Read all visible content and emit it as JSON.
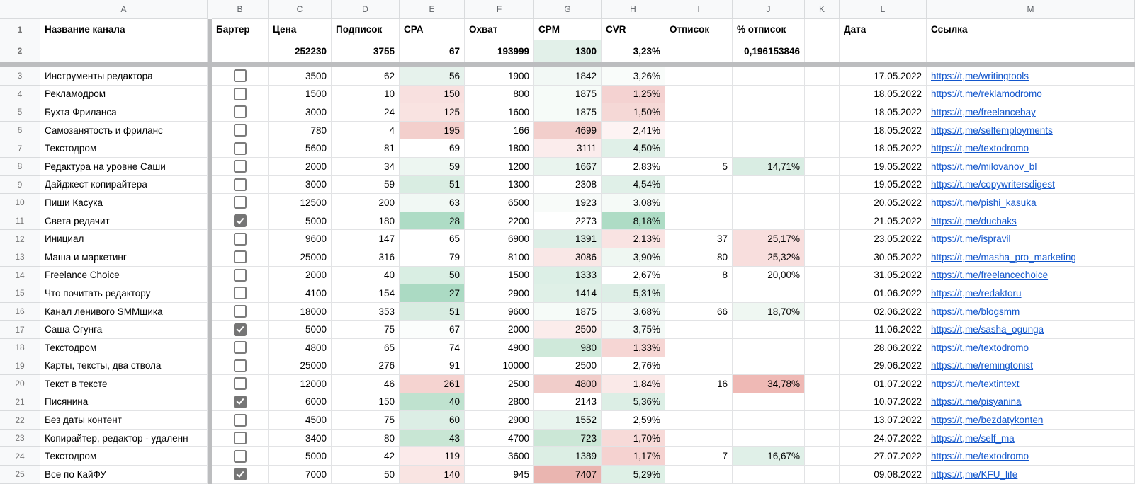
{
  "sheet": {
    "column_letters": [
      "A",
      "B",
      "C",
      "D",
      "E",
      "F",
      "G",
      "H",
      "I",
      "J",
      "K",
      "L",
      "M"
    ],
    "headers": {
      "name": "Название канала",
      "barter": "Бартер",
      "price": "Цена",
      "subs": "Подписок",
      "cpa": "CPA",
      "reach": "Охват",
      "cpm": "CPM",
      "cvr": "CVR",
      "unsub": "Отписок",
      "unsub_pct": "% отписок",
      "k": "",
      "date": "Дата",
      "link": "Ссылка"
    },
    "totals": {
      "row_number": "2",
      "price": "252230",
      "subs": "3755",
      "cpa": "67",
      "reach": "193999",
      "cpm": "1300",
      "cpm_bg": "#e2f0e9",
      "cvr": "3,23%",
      "unsub_pct": "0,196153846"
    },
    "rows": [
      {
        "row_number": "3",
        "name": "Инструменты редактора",
        "barter": false,
        "price": "3500",
        "subs": "62",
        "cpa": "56",
        "cpa_bg": "#e6f2ec",
        "reach": "1900",
        "cpm": "1842",
        "cpm_bg": "#f2f8f5",
        "cvr": "3,26%",
        "cvr_bg": "#f9fcfa",
        "unsub": "",
        "unsub_pct": "",
        "unsub_pct_bg": "",
        "date": "17.05.2022",
        "link": "https://t,me/writingtools"
      },
      {
        "row_number": "4",
        "name": "Рекламодром",
        "barter": false,
        "price": "1500",
        "subs": "10",
        "cpa": "150",
        "cpa_bg": "#f8e0df",
        "reach": "800",
        "cpm": "1875",
        "cpm_bg": "#f6fbf8",
        "cvr": "1,25%",
        "cvr_bg": "#f4d2d1",
        "unsub": "",
        "unsub_pct": "",
        "unsub_pct_bg": "",
        "date": "18.05.2022",
        "link": "https://t,me/reklamodromo"
      },
      {
        "row_number": "5",
        "name": "Бухта Фриланса",
        "barter": false,
        "price": "3000",
        "subs": "24",
        "cpa": "125",
        "cpa_bg": "#f9e3e1",
        "reach": "1600",
        "cpm": "1875",
        "cpm_bg": "#f6fbf8",
        "cvr": "1,50%",
        "cvr_bg": "#f5d8d6",
        "unsub": "",
        "unsub_pct": "",
        "unsub_pct_bg": "",
        "date": "18.05.2022",
        "link": "https://t,me/freelancebay"
      },
      {
        "row_number": "6",
        "name": "Самозанятость и фриланс",
        "barter": false,
        "price": "780",
        "subs": "4",
        "cpa": "195",
        "cpa_bg": "#f3cfcc",
        "reach": "166",
        "cpm": "4699",
        "cpm_bg": "#f2cecb",
        "cvr": "2,41%",
        "cvr_bg": "#fdf3f3",
        "unsub": "",
        "unsub_pct": "",
        "unsub_pct_bg": "",
        "date": "18.05.2022",
        "link": "https://t,me/selfemployments"
      },
      {
        "row_number": "7",
        "name": "Текстодром",
        "barter": false,
        "price": "5600",
        "subs": "81",
        "cpa": "69",
        "cpa_bg": "",
        "reach": "1800",
        "cpm": "3111",
        "cpm_bg": "#fbecec",
        "cvr": "4,50%",
        "cvr_bg": "#e0f0e8",
        "unsub": "",
        "unsub_pct": "",
        "unsub_pct_bg": "",
        "date": "18.05.2022",
        "link": "https://t,me/textodromo"
      },
      {
        "row_number": "8",
        "name": "Редактура на уровне Саши",
        "barter": false,
        "price": "2000",
        "subs": "34",
        "cpa": "59",
        "cpa_bg": "#edf6f1",
        "reach": "1200",
        "cpm": "1667",
        "cpm_bg": "#e9f4ee",
        "cvr": "2,83%",
        "cvr_bg": "",
        "unsub": "5",
        "unsub_pct": "14,71%",
        "unsub_pct_bg": "#d9ede3",
        "date": "19.05.2022",
        "link": "https://t,me/milovanov_bl"
      },
      {
        "row_number": "9",
        "name": "Дайджест копирайтера",
        "barter": false,
        "price": "3000",
        "subs": "59",
        "cpa": "51",
        "cpa_bg": "#d9ede2",
        "reach": "1300",
        "cpm": "2308",
        "cpm_bg": "",
        "cvr": "4,54%",
        "cvr_bg": "#e0f0e8",
        "unsub": "",
        "unsub_pct": "",
        "unsub_pct_bg": "",
        "date": "19.05.2022",
        "link": "https://t,me/copywritersdigest"
      },
      {
        "row_number": "10",
        "name": "Пиши Касука",
        "barter": false,
        "price": "12500",
        "subs": "200",
        "cpa": "63",
        "cpa_bg": "#f1f8f4",
        "reach": "6500",
        "cpm": "1923",
        "cpm_bg": "#f8fbf9",
        "cvr": "3,08%",
        "cvr_bg": "#f5faf7",
        "unsub": "",
        "unsub_pct": "",
        "unsub_pct_bg": "",
        "date": "20.05.2022",
        "link": "https://t,me/pishi_kasuka"
      },
      {
        "row_number": "11",
        "name": "Света редачит",
        "barter": true,
        "price": "5000",
        "subs": "180",
        "cpa": "28",
        "cpa_bg": "#aedcc5",
        "reach": "2200",
        "cpm": "2273",
        "cpm_bg": "",
        "cvr": "8,18%",
        "cvr_bg": "#aedcc5",
        "unsub": "",
        "unsub_pct": "",
        "unsub_pct_bg": "",
        "date": "21.05.2022",
        "link": "https://t,me/duchaks"
      },
      {
        "row_number": "12",
        "name": "Инициал",
        "barter": false,
        "price": "9600",
        "subs": "147",
        "cpa": "65",
        "cpa_bg": "",
        "reach": "6900",
        "cpm": "1391",
        "cpm_bg": "#ddeee6",
        "cvr": "2,13%",
        "cvr_bg": "#f9e3e2",
        "unsub": "37",
        "unsub_pct": "25,17%",
        "unsub_pct_bg": "#f8dedd",
        "date": "23.05.2022",
        "link": "https://t,me/ispravil"
      },
      {
        "row_number": "13",
        "name": "Маша и маркетинг",
        "barter": false,
        "price": "25000",
        "subs": "316",
        "cpa": "79",
        "cpa_bg": "",
        "reach": "8100",
        "cpm": "3086",
        "cpm_bg": "#f9e7e6",
        "cvr": "3,90%",
        "cvr_bg": "#eff7f2",
        "unsub": "80",
        "unsub_pct": "25,32%",
        "unsub_pct_bg": "#f8dedd",
        "date": "30.05.2022",
        "link": "https://t,me/masha_pro_marketing"
      },
      {
        "row_number": "14",
        "name": "Freelance Choice",
        "barter": false,
        "price": "2000",
        "subs": "40",
        "cpa": "50",
        "cpa_bg": "#d9eee3",
        "reach": "1500",
        "cpm": "1333",
        "cpm_bg": "#dcefe6",
        "cvr": "2,67%",
        "cvr_bg": "",
        "unsub": "8",
        "unsub_pct": "20,00%",
        "unsub_pct_bg": "",
        "date": "31.05.2022",
        "link": "https://t,me/freelancechoice"
      },
      {
        "row_number": "15",
        "name": "Что почитать редактору",
        "barter": false,
        "price": "4100",
        "subs": "154",
        "cpa": "27",
        "cpa_bg": "#abdac3",
        "reach": "2900",
        "cpm": "1414",
        "cpm_bg": "#dff0e7",
        "cvr": "5,31%",
        "cvr_bg": "#ddeee6",
        "unsub": "",
        "unsub_pct": "",
        "unsub_pct_bg": "",
        "date": "01.06.2022",
        "link": "https://t,me/redaktoru"
      },
      {
        "row_number": "16",
        "name": "Канал ленивого SMMщика",
        "barter": false,
        "price": "18000",
        "subs": "353",
        "cpa": "51",
        "cpa_bg": "#d8ece1",
        "reach": "9600",
        "cpm": "1875",
        "cpm_bg": "#f6fbf8",
        "cvr": "3,68%",
        "cvr_bg": "#f3f9f6",
        "unsub": "66",
        "unsub_pct": "18,70%",
        "unsub_pct_bg": "#eff7f2",
        "date": "02.06.2022",
        "link": "https://t,me/blogsmm"
      },
      {
        "row_number": "17",
        "name": "Саша Огунга",
        "barter": true,
        "price": "5000",
        "subs": "75",
        "cpa": "67",
        "cpa_bg": "#fbfdfc",
        "reach": "2000",
        "cpm": "2500",
        "cpm_bg": "#fbeceb",
        "cvr": "3,75%",
        "cvr_bg": "#f3f9f6",
        "unsub": "",
        "unsub_pct": "",
        "unsub_pct_bg": "",
        "date": "11.06.2022",
        "link": "https://t,me/sasha_ogunga"
      },
      {
        "row_number": "18",
        "name": "Текстодром",
        "barter": false,
        "price": "4800",
        "subs": "65",
        "cpa": "74",
        "cpa_bg": "",
        "reach": "4900",
        "cpm": "980",
        "cpm_bg": "#cfe9da",
        "cvr": "1,33%",
        "cvr_bg": "#f6d6d4",
        "unsub": "",
        "unsub_pct": "",
        "unsub_pct_bg": "",
        "date": "28.06.2022",
        "link": "https://t,me/textodromo"
      },
      {
        "row_number": "19",
        "name": "Карты, тексты, два ствола",
        "barter": false,
        "price": "25000",
        "subs": "276",
        "cpa": "91",
        "cpa_bg": "",
        "reach": "10000",
        "cpm": "2500",
        "cpm_bg": "",
        "cvr": "2,76%",
        "cvr_bg": "",
        "unsub": "",
        "unsub_pct": "",
        "unsub_pct_bg": "",
        "date": "29.06.2022",
        "link": "https://t,me/remingtonist"
      },
      {
        "row_number": "20",
        "name": "Текст в тексте",
        "barter": false,
        "price": "12000",
        "subs": "46",
        "cpa": "261",
        "cpa_bg": "#f5d3d0",
        "reach": "2500",
        "cpm": "4800",
        "cpm_bg": "#f1cdca",
        "cvr": "1,84%",
        "cvr_bg": "#fae9e8",
        "unsub": "16",
        "unsub_pct": "34,78%",
        "unsub_pct_bg": "#efb9b5",
        "date": "01.07.2022",
        "link": "https://t,me/textintext"
      },
      {
        "row_number": "21",
        "name": "Писянина",
        "barter": true,
        "price": "6000",
        "subs": "150",
        "cpa": "40",
        "cpa_bg": "#bfe2cf",
        "reach": "2800",
        "cpm": "2143",
        "cpm_bg": "",
        "cvr": "5,36%",
        "cvr_bg": "#dceee5",
        "unsub": "",
        "unsub_pct": "",
        "unsub_pct_bg": "",
        "date": "10.07.2022",
        "link": "https://t,me/pisyanina"
      },
      {
        "row_number": "22",
        "name": "Без даты контент",
        "barter": false,
        "price": "4500",
        "subs": "75",
        "cpa": "60",
        "cpa_bg": "#dceee5",
        "reach": "2900",
        "cpm": "1552",
        "cpm_bg": "#e8f4ee",
        "cvr": "2,59%",
        "cvr_bg": "",
        "unsub": "",
        "unsub_pct": "",
        "unsub_pct_bg": "",
        "date": "13.07.2022",
        "link": "https://t,me/bezdatykonten"
      },
      {
        "row_number": "23",
        "name": "Копирайтер, редактор - удаленн",
        "barter": false,
        "price": "3400",
        "subs": "80",
        "cpa": "43",
        "cpa_bg": "#c8e6d4",
        "reach": "4700",
        "cpm": "723",
        "cpm_bg": "#cbe7d6",
        "cvr": "1,70%",
        "cvr_bg": "#f7dad8",
        "unsub": "",
        "unsub_pct": "",
        "unsub_pct_bg": "",
        "date": "24.07.2022",
        "link": "https://t,me/self_ma"
      },
      {
        "row_number": "24",
        "name": "Текстодром",
        "barter": false,
        "price": "5000",
        "subs": "42",
        "cpa": "119",
        "cpa_bg": "#fbeaea",
        "reach": "3600",
        "cpm": "1389",
        "cpm_bg": "#dceee4",
        "cvr": "1,17%",
        "cvr_bg": "#f5d2d0",
        "unsub": "7",
        "unsub_pct": "16,67%",
        "unsub_pct_bg": "#e0f0e8",
        "date": "27.07.2022",
        "link": "https://t,me/textodromo"
      },
      {
        "row_number": "25",
        "name": "Все по КайФУ",
        "barter": true,
        "price": "7000",
        "subs": "50",
        "cpa": "140",
        "cpa_bg": "#f9e4e2",
        "reach": "945",
        "cpm": "7407",
        "cpm_bg": "#eab5b0",
        "cvr": "5,29%",
        "cvr_bg": "#def0e6",
        "unsub": "",
        "unsub_pct": "",
        "unsub_pct_bg": "",
        "date": "09.08.2022",
        "link": "https://t,me/KFU_life"
      }
    ],
    "colors": {
      "link": "#1155cc",
      "frozen_divider": "#bcbdbf",
      "gridline": "#e2e3e5",
      "header_strip_bg": "#f8f9fa",
      "cond_green_strong": "#aedcc5",
      "cond_red_strong": "#eab5b0"
    }
  }
}
